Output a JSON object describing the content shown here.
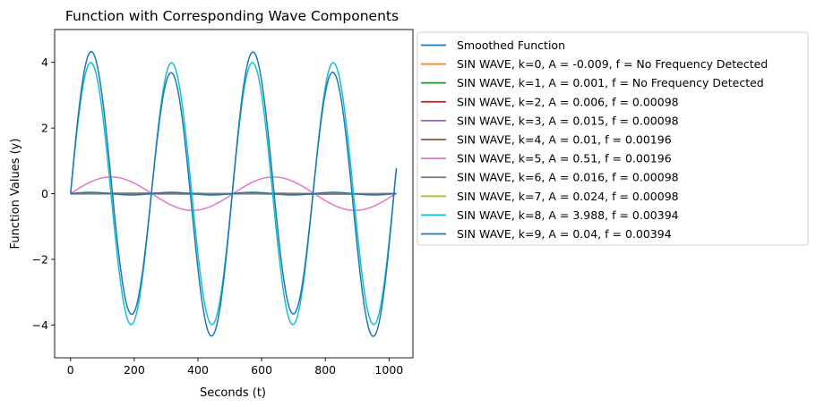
{
  "chart_data": {
    "type": "line",
    "title": "Function with Corresponding Wave Components",
    "xlabel": "Seconds (t)",
    "ylabel": "Function Values (y)",
    "xlim": [
      -50,
      1075
    ],
    "ylim": [
      -5,
      5
    ],
    "x_ticks": [
      0,
      200,
      400,
      600,
      800,
      1000
    ],
    "y_ticks": [
      -4,
      -2,
      0,
      2,
      4
    ],
    "x_tick_labels": [
      "0",
      "200",
      "400",
      "600",
      "800",
      "1000"
    ],
    "y_tick_labels": [
      "−4",
      "−2",
      "0",
      "2",
      "4"
    ],
    "grid": false,
    "legend_position": "outside-right-top",
    "t_range": [
      0,
      1023
    ],
    "series": [
      {
        "name": "Smoothed Function",
        "color": "#1f77b4",
        "amplitude": 4.0,
        "frequency": 0.00394
      },
      {
        "name": "SIN WAVE, k=0, A = -0.009, f = No Frequency Detected",
        "color": "#ff7f0e",
        "amplitude": -0.009,
        "frequency": 0
      },
      {
        "name": "SIN WAVE, k=1, A = 0.001, f = No Frequency Detected",
        "color": "#2ca02c",
        "amplitude": 0.001,
        "frequency": 0
      },
      {
        "name": "SIN WAVE, k=2, A = 0.006, f = 0.00098",
        "color": "#d62728",
        "amplitude": 0.006,
        "frequency": 0.00098
      },
      {
        "name": "SIN WAVE, k=3, A = 0.015, f = 0.00098",
        "color": "#9467bd",
        "amplitude": 0.015,
        "frequency": 0.00098
      },
      {
        "name": "SIN WAVE, k=4, A = 0.01, f = 0.00196",
        "color": "#8c564b",
        "amplitude": 0.01,
        "frequency": 0.00196
      },
      {
        "name": "SIN WAVE, k=5, A = 0.51, f = 0.00196",
        "color": "#e377c2",
        "amplitude": 0.51,
        "frequency": 0.00196
      },
      {
        "name": "SIN WAVE, k=6, A = 0.016, f = 0.00098",
        "color": "#7f7f7f",
        "amplitude": 0.016,
        "frequency": 0.00098
      },
      {
        "name": "SIN WAVE, k=7, A = 0.024, f = 0.00098",
        "color": "#bcbd22",
        "amplitude": 0.024,
        "frequency": 0.00098
      },
      {
        "name": "SIN WAVE, k=8, A = 3.988, f = 0.00394",
        "color": "#17becf",
        "amplitude": 3.988,
        "frequency": 0.00394
      },
      {
        "name": "SIN WAVE, k=9, A = 0.04, f = 0.00394",
        "color": "#1f77b4",
        "amplitude": 0.04,
        "frequency": 0.00394
      }
    ]
  }
}
